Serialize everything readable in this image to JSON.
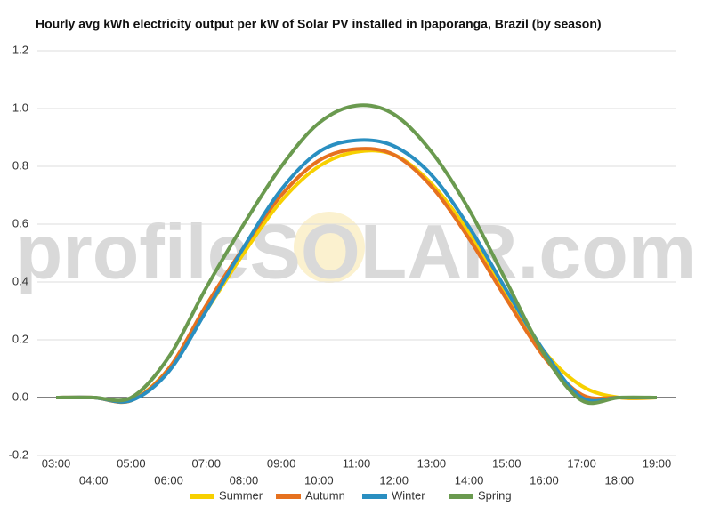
{
  "chart_data": {
    "type": "line",
    "title": "Hourly avg kWh electricity output per kW of Solar PV installed in Ipaporanga, Brazil (by season)",
    "watermark": "profileSOLAR.com",
    "categories": [
      "03:00",
      "04:00",
      "05:00",
      "06:00",
      "07:00",
      "08:00",
      "09:00",
      "10:00",
      "11:00",
      "12:00",
      "13:00",
      "14:00",
      "15:00",
      "16:00",
      "17:00",
      "18:00",
      "19:00"
    ],
    "series": [
      {
        "name": "Summer",
        "color": "#f7d000",
        "values": [
          0,
          0,
          -0.01,
          0.1,
          0.3,
          0.5,
          0.68,
          0.8,
          0.85,
          0.84,
          0.74,
          0.57,
          0.36,
          0.16,
          0.04,
          0,
          0
        ]
      },
      {
        "name": "Autumn",
        "color": "#e6711f",
        "values": [
          0,
          0,
          -0.01,
          0.1,
          0.32,
          0.52,
          0.7,
          0.82,
          0.86,
          0.84,
          0.73,
          0.55,
          0.34,
          0.14,
          0.01,
          0,
          0
        ]
      },
      {
        "name": "Winter",
        "color": "#2a8fc1",
        "values": [
          0,
          0,
          -0.01,
          0.09,
          0.3,
          0.52,
          0.72,
          0.85,
          0.89,
          0.87,
          0.77,
          0.59,
          0.37,
          0.16,
          0,
          0,
          0
        ]
      },
      {
        "name": "Spring",
        "color": "#6a9a4f",
        "values": [
          0,
          0,
          0,
          0.14,
          0.38,
          0.6,
          0.8,
          0.95,
          1.01,
          0.98,
          0.85,
          0.65,
          0.4,
          0.15,
          -0.01,
          0,
          0
        ]
      }
    ],
    "ylim": [
      -0.2,
      1.2
    ],
    "yticks": [
      -0.2,
      {
        "value": 0,
        "label": "0.0"
      },
      0.2,
      0.4,
      0.6,
      0.8,
      {
        "value": 1,
        "label": "1.0"
      },
      1.2
    ],
    "grid": true,
    "legend": "bottom"
  }
}
